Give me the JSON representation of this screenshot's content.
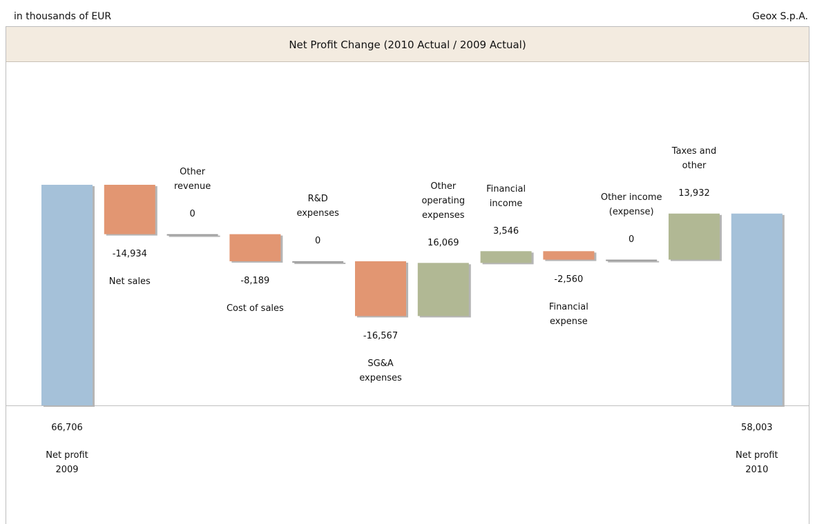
{
  "header": {
    "left": "in thousands of EUR",
    "right": "Geox S.p.A."
  },
  "chart_data": {
    "type": "waterfall",
    "title": "Net Profit Change (2010 Actual / 2009 Actual)",
    "categories": [
      "Net profit\n2009",
      "Net sales",
      "Other\nrevenue",
      "Cost of sales",
      "R&D\nexpenses",
      "SG&A\nexpenses",
      "Other\noperating\nexpenses",
      "Financial\nincome",
      "Financial\nexpense",
      "Other income\n(expense)",
      "Taxes and\nother",
      "Net profit\n2010"
    ],
    "values": [
      66706,
      -14934,
      0,
      -8189,
      0,
      -16567,
      16069,
      3546,
      -2560,
      0,
      13932,
      58003
    ],
    "value_labels": [
      "66,706",
      "-14,934",
      "0",
      "-8,189",
      "0",
      "-16,567",
      "16,069",
      "3,546",
      "-2,560",
      "0",
      "13,932",
      "58,003"
    ],
    "measure": [
      "total",
      "relative",
      "relative",
      "relative",
      "relative",
      "relative",
      "relative",
      "relative",
      "relative",
      "relative",
      "relative",
      "total"
    ],
    "colors": {
      "total": "#a5c1d9",
      "decrease": "#e29672",
      "increase": "#b1b894"
    }
  }
}
